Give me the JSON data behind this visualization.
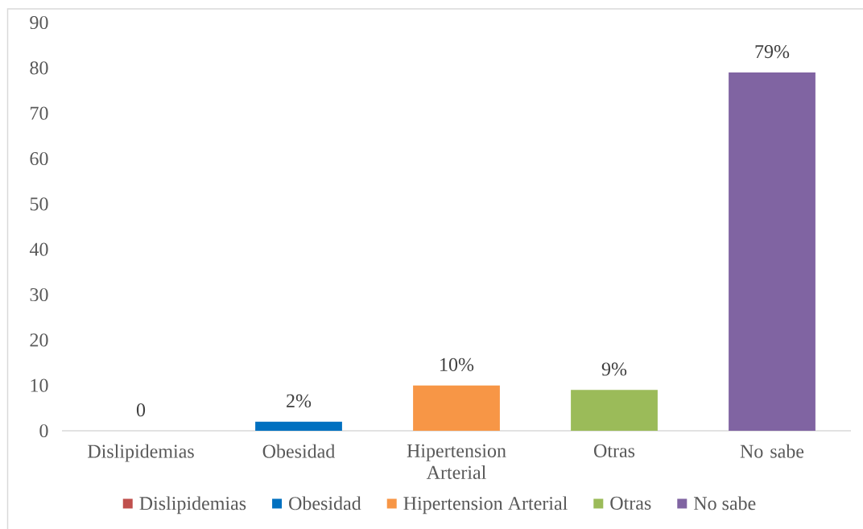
{
  "chart_data": {
    "type": "bar",
    "categories": [
      "Dislipidemias",
      "Obesidad",
      "Hipertension Arterial",
      "Otras",
      "No sabe"
    ],
    "series": [
      {
        "name": "Dislipidemias",
        "color": "#c0504d",
        "values": [
          0,
          null,
          null,
          null,
          null
        ],
        "value_labels": [
          "0",
          null,
          null,
          null,
          null
        ]
      },
      {
        "name": "Obesidad",
        "color": "#0070c0",
        "values": [
          null,
          2,
          null,
          null,
          null
        ],
        "value_labels": [
          null,
          "2%",
          null,
          null,
          null
        ]
      },
      {
        "name": "Hipertension Arterial",
        "color": "#f79646",
        "values": [
          null,
          null,
          10,
          null,
          null
        ],
        "value_labels": [
          null,
          null,
          "10%",
          null,
          null
        ]
      },
      {
        "name": "Otras",
        "color": "#9bbb59",
        "values": [
          null,
          null,
          null,
          9,
          null
        ],
        "value_labels": [
          null,
          null,
          null,
          "9%",
          null
        ]
      },
      {
        "name": "No sabe",
        "color": "#8064a2",
        "values": [
          null,
          null,
          null,
          null,
          79
        ],
        "value_labels": [
          null,
          null,
          null,
          null,
          "79%"
        ]
      }
    ],
    "ylim": [
      0,
      90
    ],
    "yticks": [
      0,
      10,
      20,
      30,
      40,
      50,
      60,
      70,
      80,
      90
    ],
    "legend": "bottom"
  }
}
